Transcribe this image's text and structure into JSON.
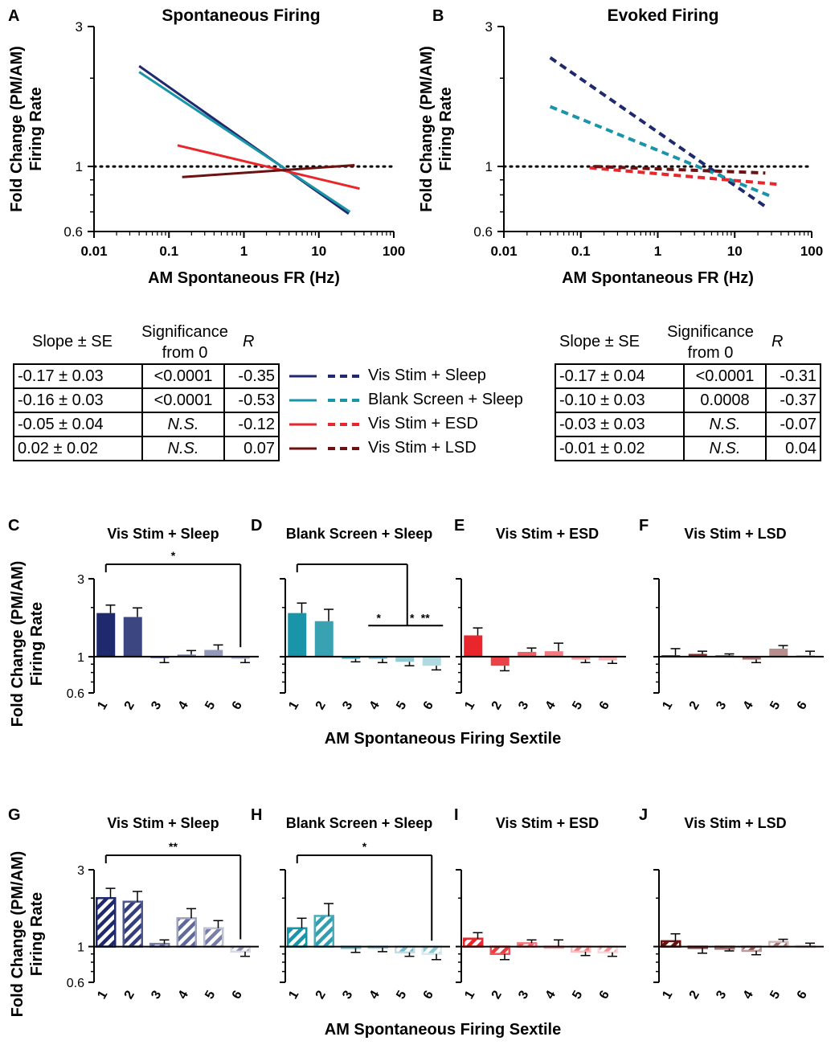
{
  "colors": {
    "vis_sleep": "#1f2a6e",
    "blank_sleep": "#1a94a8",
    "vis_esd": "#e8262b",
    "vis_lsd": "#6b1111"
  },
  "legend": [
    {
      "key": "vis_sleep",
      "label": "Vis Stim + Sleep"
    },
    {
      "key": "blank_sleep",
      "label": "Blank Screen + Sleep"
    },
    {
      "key": "vis_esd",
      "label": "Vis Stim + ESD"
    },
    {
      "key": "vis_lsd",
      "label": "Vis Stim + LSD"
    }
  ],
  "tables": {
    "headers": {
      "slope": "Slope ± SE",
      "sig_line1": "Significance",
      "sig_line2": "from 0",
      "r": "R"
    },
    "left": [
      [
        "-0.17 ± 0.03",
        "<0.0001",
        "-0.35"
      ],
      [
        "-0.16 ± 0.03",
        "<0.0001",
        "-0.53"
      ],
      [
        "-0.05 ± 0.04",
        "N.S.",
        "-0.12"
      ],
      [
        "0.02 ± 0.02",
        "N.S.",
        "0.07"
      ]
    ],
    "right": [
      [
        "-0.17 ± 0.04",
        "<0.0001",
        "-0.31"
      ],
      [
        "-0.10 ± 0.03",
        "0.0008",
        "-0.37"
      ],
      [
        "-0.03 ± 0.03",
        "N.S.",
        "-0.07"
      ],
      [
        "-0.01 ± 0.02",
        "N.S.",
        "0.04"
      ]
    ]
  },
  "chart_data": [
    {
      "panel": "A",
      "type": "line",
      "title": "Spontaneous Firing",
      "xlabel": "AM Spontaneous FR (Hz)",
      "ylabel": [
        "Fold Change (PM/AM)",
        "Firing Rate"
      ],
      "xscale": "log",
      "yscale": "log",
      "xlim": [
        0.01,
        100
      ],
      "ylim": [
        0.6,
        3
      ],
      "xticks": [
        "0.01",
        "0.1",
        "1",
        "10",
        "100"
      ],
      "yticks": [
        "0.6",
        "1",
        "3"
      ],
      "reference_line": 1,
      "dashed": false,
      "series": [
        {
          "name": "Vis Stim + Sleep",
          "color": "vis_sleep",
          "x": [
            0.04,
            25
          ],
          "y": [
            2.2,
            0.69
          ]
        },
        {
          "name": "Blank Screen + Sleep",
          "color": "blank_sleep",
          "x": [
            0.04,
            26
          ],
          "y": [
            2.1,
            0.7
          ]
        },
        {
          "name": "Vis Stim + ESD",
          "color": "vis_esd",
          "x": [
            0.13,
            35
          ],
          "y": [
            1.18,
            0.84
          ]
        },
        {
          "name": "Vis Stim + LSD",
          "color": "vis_lsd",
          "x": [
            0.15,
            30
          ],
          "y": [
            0.92,
            1.01
          ]
        }
      ]
    },
    {
      "panel": "B",
      "type": "line",
      "title": "Evoked Firing",
      "xlabel": "AM Spontaneous FR (Hz)",
      "ylabel": [
        "Fold Change (PM/AM)",
        "Firing Rate"
      ],
      "xscale": "log",
      "yscale": "log",
      "xlim": [
        0.01,
        100
      ],
      "ylim": [
        0.6,
        3
      ],
      "xticks": [
        "0.01",
        "0.1",
        "1",
        "10",
        "100"
      ],
      "yticks": [
        "0.6",
        "1",
        "3"
      ],
      "reference_line": 1,
      "dashed": true,
      "series": [
        {
          "name": "Vis Stim + Sleep",
          "color": "vis_sleep",
          "x": [
            0.04,
            25
          ],
          "y": [
            2.35,
            0.73
          ]
        },
        {
          "name": "Blank Screen + Sleep",
          "color": "blank_sleep",
          "x": [
            0.04,
            30
          ],
          "y": [
            1.6,
            0.79
          ]
        },
        {
          "name": "Vis Stim + ESD",
          "color": "vis_esd",
          "x": [
            0.13,
            35
          ],
          "y": [
            0.99,
            0.87
          ]
        },
        {
          "name": "Vis Stim + LSD",
          "color": "vis_lsd",
          "x": [
            0.15,
            25
          ],
          "y": [
            1.0,
            0.95
          ]
        }
      ]
    },
    {
      "group": "spontaneous",
      "type": "bar",
      "xlabel": "AM Spontaneous Firing Sextile",
      "ylabel": [
        "Fold Change (PM/AM)",
        "Firing Rate"
      ],
      "yscale": "log",
      "ylim": [
        0.6,
        3
      ],
      "yticks": [
        "0.6",
        "1",
        "3"
      ],
      "categories": [
        "1",
        "2",
        "3",
        "4",
        "5",
        "6"
      ],
      "hatched": false,
      "panels": [
        {
          "panel": "C",
          "title": "Vis Stim + Sleep",
          "color": "vis_sleep",
          "values": [
            1.85,
            1.75,
            0.98,
            1.03,
            1.1,
            0.97
          ],
          "errors": [
            0.22,
            0.24,
            0.06,
            0.06,
            0.08,
            0.05
          ],
          "sig": [
            {
              "type": "bracket",
              "from": 1,
              "to": 6,
              "label": "*"
            }
          ]
        },
        {
          "panel": "D",
          "title": "Blank Screen + Sleep",
          "color": "blank_sleep",
          "values": [
            1.85,
            1.65,
            0.97,
            0.97,
            0.93,
            0.88
          ],
          "errors": [
            0.28,
            0.3,
            0.04,
            0.05,
            0.05,
            0.05
          ],
          "sig": [
            {
              "type": "bracket",
              "from": 1,
              "to": 5,
              "label": ""
            },
            {
              "type": "line",
              "from": 4,
              "to": 6,
              "labels": [
                "*",
                "*",
                "**"
              ]
            }
          ]
        },
        {
          "panel": "E",
          "title": "Vis Stim + ESD",
          "color": "vis_esd",
          "values": [
            1.35,
            0.88,
            1.07,
            1.08,
            0.96,
            0.95
          ],
          "errors": [
            0.15,
            0.06,
            0.06,
            0.13,
            0.04,
            0.04
          ],
          "sig": []
        },
        {
          "panel": "F",
          "title": "Vis Stim + LSD",
          "color": "vis_lsd",
          "values": [
            1.02,
            1.04,
            1.02,
            0.96,
            1.12,
            1.02
          ],
          "errors": [
            0.1,
            0.04,
            0.02,
            0.04,
            0.05,
            0.06
          ],
          "sig": []
        }
      ]
    },
    {
      "group": "evoked",
      "type": "bar",
      "xlabel": "AM Spontaneous Firing Sextile",
      "ylabel": [
        "Fold Change (PM/AM)",
        "Firing Rate"
      ],
      "yscale": "log",
      "ylim": [
        0.6,
        3
      ],
      "yticks": [
        "0.6",
        "1",
        "3"
      ],
      "categories": [
        "1",
        "2",
        "3",
        "4",
        "5",
        "6"
      ],
      "hatched": true,
      "panels": [
        {
          "panel": "G",
          "title": "Vis Stim + Sleep",
          "color": "vis_sleep",
          "values": [
            2.0,
            1.9,
            1.04,
            1.5,
            1.3,
            0.93
          ],
          "errors": [
            0.3,
            0.3,
            0.06,
            0.22,
            0.15,
            0.06
          ],
          "sig": [
            {
              "type": "bracket",
              "from": 1,
              "to": 6,
              "label": "**"
            }
          ]
        },
        {
          "panel": "H",
          "title": "Blank Screen + Sleep",
          "color": "blank_sleep",
          "values": [
            1.3,
            1.55,
            0.98,
            0.99,
            0.92,
            0.9
          ],
          "errors": [
            0.2,
            0.3,
            0.06,
            0.06,
            0.05,
            0.07
          ],
          "sig": [
            {
              "type": "bracket",
              "from": 1,
              "to": 6,
              "label": "*"
            }
          ]
        },
        {
          "panel": "I",
          "title": "Vis Stim + ESD",
          "color": "vis_esd",
          "values": [
            1.12,
            0.9,
            1.05,
            1.0,
            0.93,
            0.92
          ],
          "errors": [
            0.1,
            0.07,
            0.05,
            0.1,
            0.05,
            0.05
          ],
          "sig": []
        },
        {
          "panel": "J",
          "title": "Vis Stim + LSD",
          "color": "vis_lsd",
          "values": [
            1.08,
            0.98,
            0.97,
            0.94,
            1.07,
            1.01
          ],
          "errors": [
            0.12,
            0.07,
            0.03,
            0.05,
            0.04,
            0.04
          ],
          "sig": []
        }
      ]
    }
  ]
}
